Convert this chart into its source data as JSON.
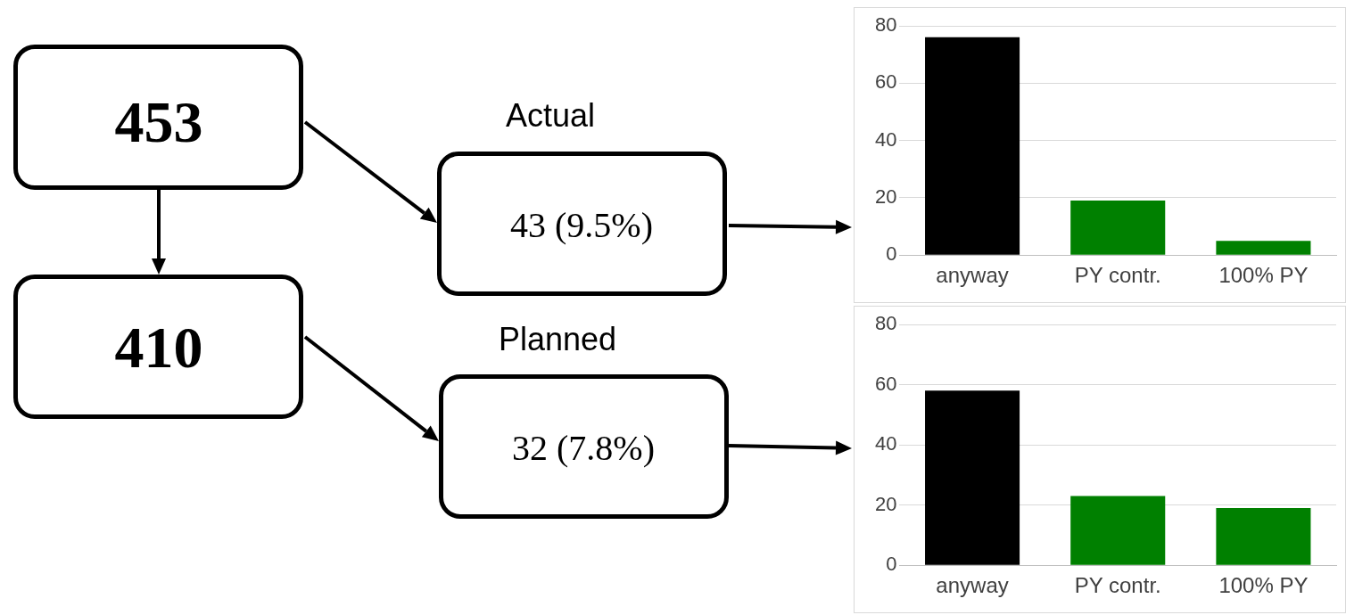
{
  "chart_data": [
    {
      "type": "other",
      "annotations": [
        "453",
        "410",
        "Actual",
        "43 (9.5%)",
        "Planned",
        "32 (7.8%)"
      ]
    },
    {
      "type": "bar",
      "categories": [
        "anyway",
        "PY contr.",
        "100% PY"
      ],
      "values": [
        76,
        19,
        5
      ],
      "colors": [
        "#000000",
        "#008000",
        "#008000"
      ],
      "ylim": [
        0,
        80
      ],
      "yticks": [
        0,
        20,
        40,
        60,
        80
      ],
      "grid": "y"
    },
    {
      "type": "bar",
      "categories": [
        "anyway",
        "PY contr.",
        "100% PY"
      ],
      "values": [
        58,
        23,
        19
      ],
      "colors": [
        "#000000",
        "#008000",
        "#008000"
      ],
      "ylim": [
        0,
        80
      ],
      "yticks": [
        0,
        20,
        40,
        60,
        80
      ],
      "grid": "y"
    }
  ]
}
